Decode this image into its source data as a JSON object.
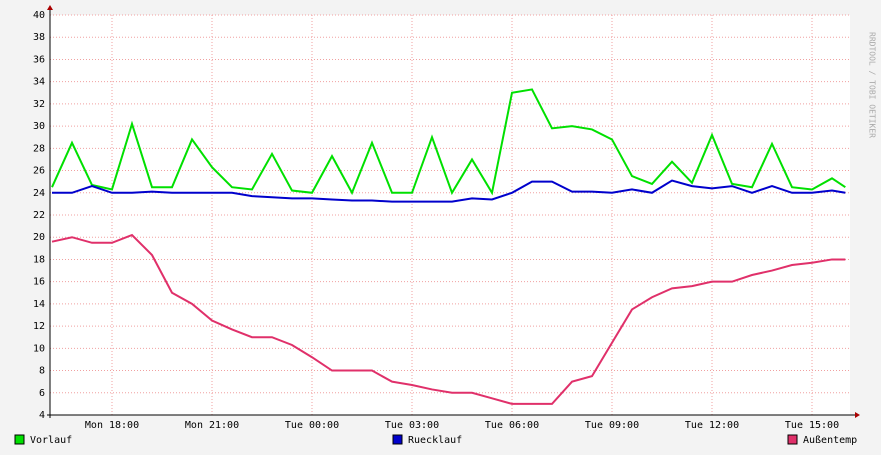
{
  "chart_data": {
    "type": "line",
    "watermark": "RRDTOOL / TOBI OETIKER",
    "x": [
      16.2,
      16.8,
      17.4,
      18.0,
      18.6,
      19.2,
      19.8,
      20.4,
      21.0,
      21.6,
      22.2,
      22.8,
      23.4,
      24.0,
      24.6,
      25.2,
      25.8,
      26.4,
      27.0,
      27.6,
      28.2,
      28.8,
      29.4,
      30.0,
      30.6,
      31.2,
      31.8,
      32.4,
      33.0,
      33.6,
      34.2,
      34.8,
      35.4,
      36.0,
      36.6,
      37.2,
      37.8,
      38.4,
      39.0,
      39.6,
      40.0
    ],
    "series": [
      {
        "name": "Vorlauf",
        "color": "#00e000",
        "values": [
          24.5,
          28.5,
          24.7,
          24.3,
          30.2,
          24.5,
          24.5,
          28.8,
          26.3,
          24.5,
          24.3,
          27.5,
          24.2,
          24.0,
          27.3,
          24.0,
          28.5,
          24.0,
          24.0,
          29.0,
          24.0,
          27.0,
          24.0,
          33.0,
          33.3,
          29.8,
          30.0,
          29.7,
          28.8,
          25.5,
          24.8,
          26.8,
          24.9,
          29.2,
          24.8,
          24.5,
          28.4,
          24.5,
          24.3,
          25.3,
          24.5
        ]
      },
      {
        "name": "Ruecklauf",
        "color": "#0000cc",
        "values": [
          24.0,
          24.0,
          24.6,
          24.0,
          24.0,
          24.1,
          24.0,
          24.0,
          24.0,
          24.0,
          23.7,
          23.6,
          23.5,
          23.5,
          23.4,
          23.3,
          23.3,
          23.2,
          23.2,
          23.2,
          23.2,
          23.5,
          23.4,
          24.0,
          25.0,
          25.0,
          24.1,
          24.1,
          24.0,
          24.3,
          24.0,
          25.1,
          24.6,
          24.4,
          24.6,
          24.0,
          24.6,
          24.0,
          24.0,
          24.2,
          24.0
        ]
      },
      {
        "name": "Außentemp",
        "color": "#e0306a",
        "values": [
          19.6,
          20.0,
          19.5,
          19.5,
          20.2,
          18.4,
          15.0,
          14.0,
          12.5,
          11.7,
          11.0,
          11.0,
          10.3,
          9.2,
          8.0,
          8.0,
          8.0,
          7.0,
          6.7,
          6.3,
          6.0,
          6.0,
          5.5,
          5.0,
          5.0,
          5.0,
          7.0,
          7.5,
          10.5,
          13.5,
          14.6,
          15.4,
          15.6,
          16.0,
          16.0,
          16.6,
          17.0,
          17.5,
          17.7,
          18.0,
          18.0
        ]
      }
    ],
    "xlim": [
      16.14,
      40.14
    ],
    "xticks": [
      {
        "value": 18,
        "label": "Mon 18:00"
      },
      {
        "value": 21,
        "label": "Mon 21:00"
      },
      {
        "value": 24,
        "label": "Tue 00:00"
      },
      {
        "value": 27,
        "label": "Tue 03:00"
      },
      {
        "value": 30,
        "label": "Tue 06:00"
      },
      {
        "value": 33,
        "label": "Tue 09:00"
      },
      {
        "value": 36,
        "label": "Tue 12:00"
      },
      {
        "value": 39,
        "label": "Tue 15:00"
      }
    ],
    "ylim": [
      4,
      40
    ],
    "yticks": [
      4,
      6,
      8,
      10,
      12,
      14,
      16,
      18,
      20,
      22,
      24,
      26,
      28,
      30,
      32,
      34,
      36,
      38,
      40
    ],
    "grid": true
  }
}
